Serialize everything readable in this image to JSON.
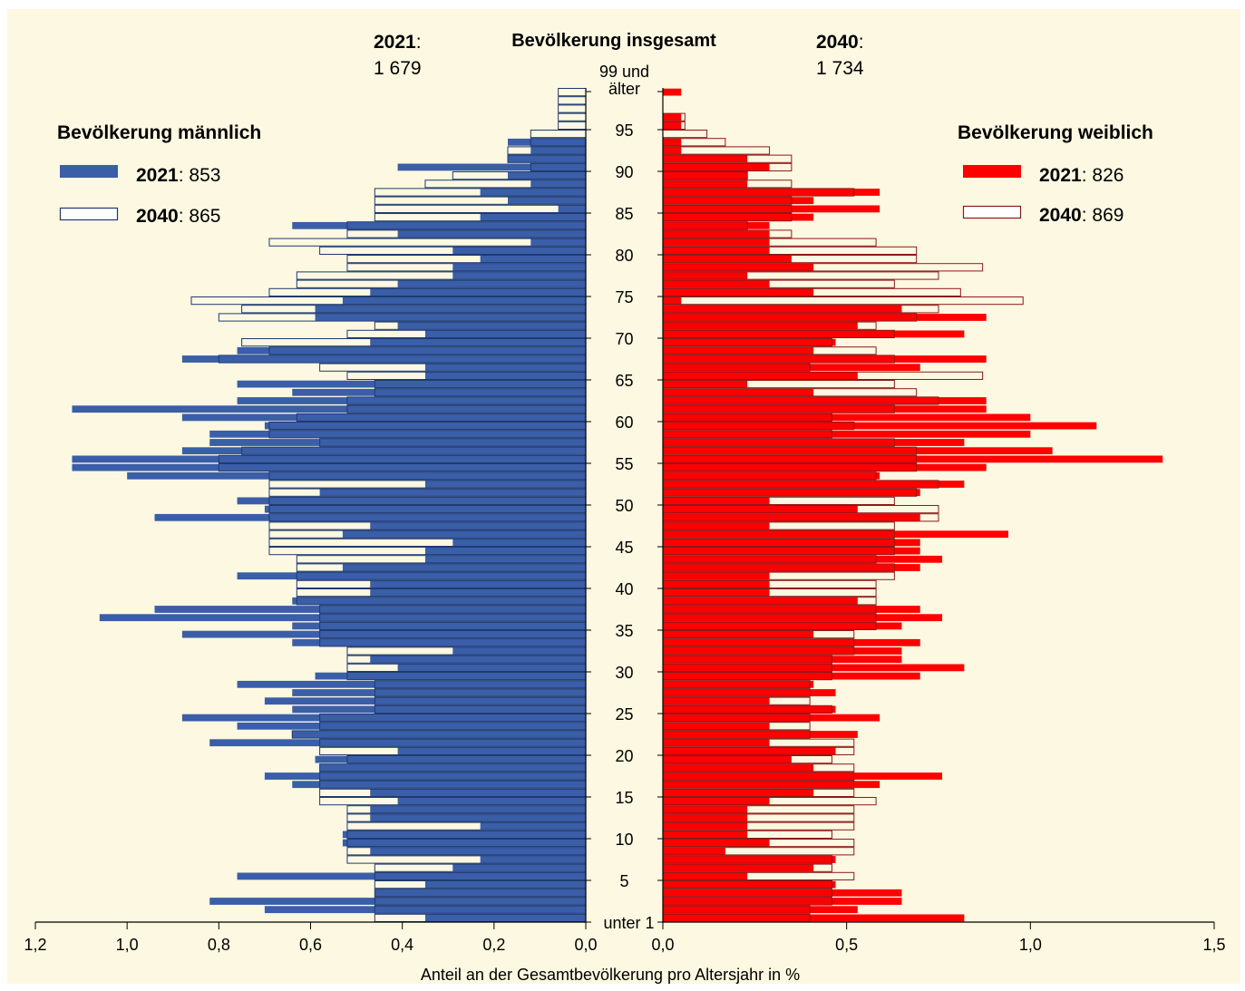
{
  "chart_data": {
    "type": "bar",
    "orientation": "horizontal",
    "subtype": "population-pyramid",
    "title": "Bevölkerung insgesamt",
    "xlabel": "Anteil an der Gesamtbevölkerung pro Altersjahr in %",
    "totals": {
      "left": {
        "year": "2021",
        "value": "1 679"
      },
      "right": {
        "year": "2040",
        "value": "1 734"
      }
    },
    "age_labels": [
      {
        "age": 0,
        "label": "unter 1"
      },
      {
        "age": 5,
        "label": "5"
      },
      {
        "age": 10,
        "label": "10"
      },
      {
        "age": 15,
        "label": "15"
      },
      {
        "age": 20,
        "label": "20"
      },
      {
        "age": 25,
        "label": "25"
      },
      {
        "age": 30,
        "label": "30"
      },
      {
        "age": 35,
        "label": "35"
      },
      {
        "age": 40,
        "label": "40"
      },
      {
        "age": 45,
        "label": "45"
      },
      {
        "age": 50,
        "label": "50"
      },
      {
        "age": 55,
        "label": "55"
      },
      {
        "age": 60,
        "label": "60"
      },
      {
        "age": 65,
        "label": "65"
      },
      {
        "age": 70,
        "label": "70"
      },
      {
        "age": 75,
        "label": "75"
      },
      {
        "age": 80,
        "label": "80"
      },
      {
        "age": 85,
        "label": "85"
      },
      {
        "age": 90,
        "label": "90"
      },
      {
        "age": 95,
        "label": "95"
      },
      {
        "age": 99,
        "label": "99 und älter"
      }
    ],
    "left_axis": {
      "ticks": [
        "1,2",
        "1,0",
        "0,8",
        "0,6",
        "0,4",
        "0,2",
        "0,0"
      ],
      "range": [
        1.2,
        0
      ]
    },
    "right_axis": {
      "ticks": [
        "0,0",
        "0,5",
        "1,0",
        "1,5"
      ],
      "range": [
        0,
        1.5
      ]
    },
    "panels": {
      "male": {
        "label": "Bevölkerung männlich",
        "legend": [
          {
            "year": "2021",
            "value": "853",
            "style": "filled"
          },
          {
            "year": "2040",
            "value": "865",
            "style": "outline"
          }
        ],
        "series": [
          {
            "name": "2021",
            "values": [
              0.35,
              0.7,
              0.82,
              0.46,
              0.35,
              0.76,
              0.29,
              0.23,
              0.47,
              0.53,
              0.53,
              0.23,
              0.47,
              0.47,
              0.41,
              0.47,
              0.64,
              0.7,
              0.58,
              0.59,
              0.41,
              0.82,
              0.64,
              0.76,
              0.88,
              0.64,
              0.7,
              0.64,
              0.76,
              0.59,
              0.41,
              0.47,
              0.29,
              0.64,
              0.88,
              0.64,
              1.06,
              0.94,
              0.64,
              0.47,
              0.47,
              0.76,
              0.53,
              0.35,
              0.35,
              0.29,
              0.53,
              0.47,
              0.94,
              0.7,
              0.76,
              0.58,
              0.35,
              1.0,
              1.12,
              1.12,
              0.88,
              0.82,
              0.82,
              0.7,
              0.88,
              1.12,
              0.76,
              0.64,
              0.76,
              0.35,
              0.35,
              0.88,
              0.76,
              0.47,
              0.35,
              0.41,
              0.59,
              0.59,
              0.53,
              0.47,
              0.41,
              0.29,
              0.29,
              0.23,
              0.29,
              0.12,
              0.41,
              0.64,
              0.23,
              0.06,
              0.17,
              0.23,
              0.12,
              0.17,
              0.41,
              0.17,
              0.12,
              0.17,
              0,
              0,
              0,
              0,
              0,
              0
            ]
          },
          {
            "name": "2040",
            "values": [
              0.46,
              0.46,
              0.46,
              0.46,
              0.46,
              0.46,
              0.46,
              0.52,
              0.52,
              0.52,
              0.52,
              0.52,
              0.52,
              0.52,
              0.58,
              0.58,
              0.58,
              0.58,
              0.58,
              0.52,
              0.58,
              0.58,
              0.64,
              0.58,
              0.58,
              0.46,
              0.46,
              0.46,
              0.46,
              0.52,
              0.52,
              0.52,
              0.52,
              0.58,
              0.58,
              0.58,
              0.58,
              0.58,
              0.63,
              0.63,
              0.63,
              0.63,
              0.63,
              0.63,
              0.69,
              0.69,
              0.69,
              0.69,
              0.69,
              0.69,
              0.69,
              0.69,
              0.69,
              0.69,
              0.8,
              0.8,
              0.75,
              0.58,
              0.69,
              0.69,
              0.63,
              0.52,
              0.52,
              0.46,
              0.46,
              0.52,
              0.58,
              0.8,
              0.69,
              0.75,
              0.52,
              0.46,
              0.8,
              0.75,
              0.86,
              0.69,
              0.63,
              0.63,
              0.52,
              0.52,
              0.58,
              0.69,
              0.52,
              0.52,
              0.46,
              0.46,
              0.46,
              0.46,
              0.35,
              0.29,
              0.12,
              0.17,
              0.17,
              0.12,
              0.12,
              0.06,
              0.06,
              0.06,
              0.06,
              0.06
            ]
          }
        ]
      },
      "female": {
        "label": "Bevölkerung weiblich",
        "legend": [
          {
            "year": "2021",
            "value": "826",
            "style": "filled"
          },
          {
            "year": "2040",
            "value": "869",
            "style": "outline"
          }
        ],
        "series": [
          {
            "name": "2021",
            "values": [
              0.82,
              0.53,
              0.65,
              0.65,
              0.47,
              0.23,
              0.41,
              0.47,
              0.17,
              0.29,
              0.23,
              0.23,
              0.23,
              0.23,
              0.29,
              0.41,
              0.59,
              0.76,
              0.41,
              0.35,
              0.47,
              0.29,
              0.53,
              0.29,
              0.59,
              0.47,
              0.29,
              0.47,
              0.41,
              0.7,
              0.82,
              0.65,
              0.65,
              0.7,
              0.41,
              0.65,
              0.76,
              0.7,
              0.53,
              0.29,
              0.29,
              0.29,
              0.7,
              0.76,
              0.7,
              0.7,
              0.94,
              0.29,
              0.7,
              0.53,
              0.29,
              0.7,
              0.82,
              0.59,
              0.88,
              1.36,
              1.06,
              0.82,
              1.0,
              1.18,
              1.0,
              0.88,
              0.88,
              0.41,
              0.23,
              0.53,
              0.7,
              0.88,
              0.41,
              0.47,
              0.82,
              0.53,
              0.88,
              0.65,
              0.05,
              0.41,
              0.29,
              0.23,
              0.41,
              0.35,
              0.29,
              0.29,
              0.29,
              0.29,
              0.41,
              0.59,
              0.41,
              0.59,
              0.23,
              0.23,
              0.29,
              0.23,
              0.05,
              0.05,
              0,
              0.05,
              0.05,
              0,
              0,
              0.05
            ]
          },
          {
            "name": "2040",
            "values": [
              0.4,
              0.4,
              0.46,
              0.46,
              0.46,
              0.52,
              0.46,
              0.46,
              0.52,
              0.52,
              0.46,
              0.52,
              0.52,
              0.52,
              0.58,
              0.52,
              0.52,
              0.52,
              0.52,
              0.46,
              0.52,
              0.52,
              0.4,
              0.4,
              0.4,
              0.46,
              0.4,
              0.4,
              0.4,
              0.46,
              0.46,
              0.46,
              0.52,
              0.52,
              0.52,
              0.58,
              0.58,
              0.58,
              0.58,
              0.58,
              0.58,
              0.63,
              0.63,
              0.58,
              0.63,
              0.63,
              0.63,
              0.63,
              0.75,
              0.75,
              0.63,
              0.69,
              0.75,
              0.58,
              0.69,
              0.69,
              0.69,
              0.63,
              0.46,
              0.52,
              0.46,
              0.63,
              0.75,
              0.69,
              0.63,
              0.87,
              0.4,
              0.63,
              0.58,
              0.46,
              0.63,
              0.58,
              0.69,
              0.75,
              0.98,
              0.81,
              0.63,
              0.75,
              0.87,
              0.69,
              0.69,
              0.58,
              0.35,
              0.23,
              0.35,
              0.35,
              0.35,
              0.52,
              0.35,
              0.23,
              0.35,
              0.35,
              0.29,
              0.17,
              0.12,
              0.06,
              0.06,
              0,
              0,
              0
            ]
          }
        ]
      }
    },
    "colors": {
      "background": "#fdf8e1",
      "male_fill": "#3a5ea8",
      "male_outline": "#1f3a6e",
      "female_fill": "#ff0000",
      "female_outline": "#8b1a1a"
    }
  }
}
